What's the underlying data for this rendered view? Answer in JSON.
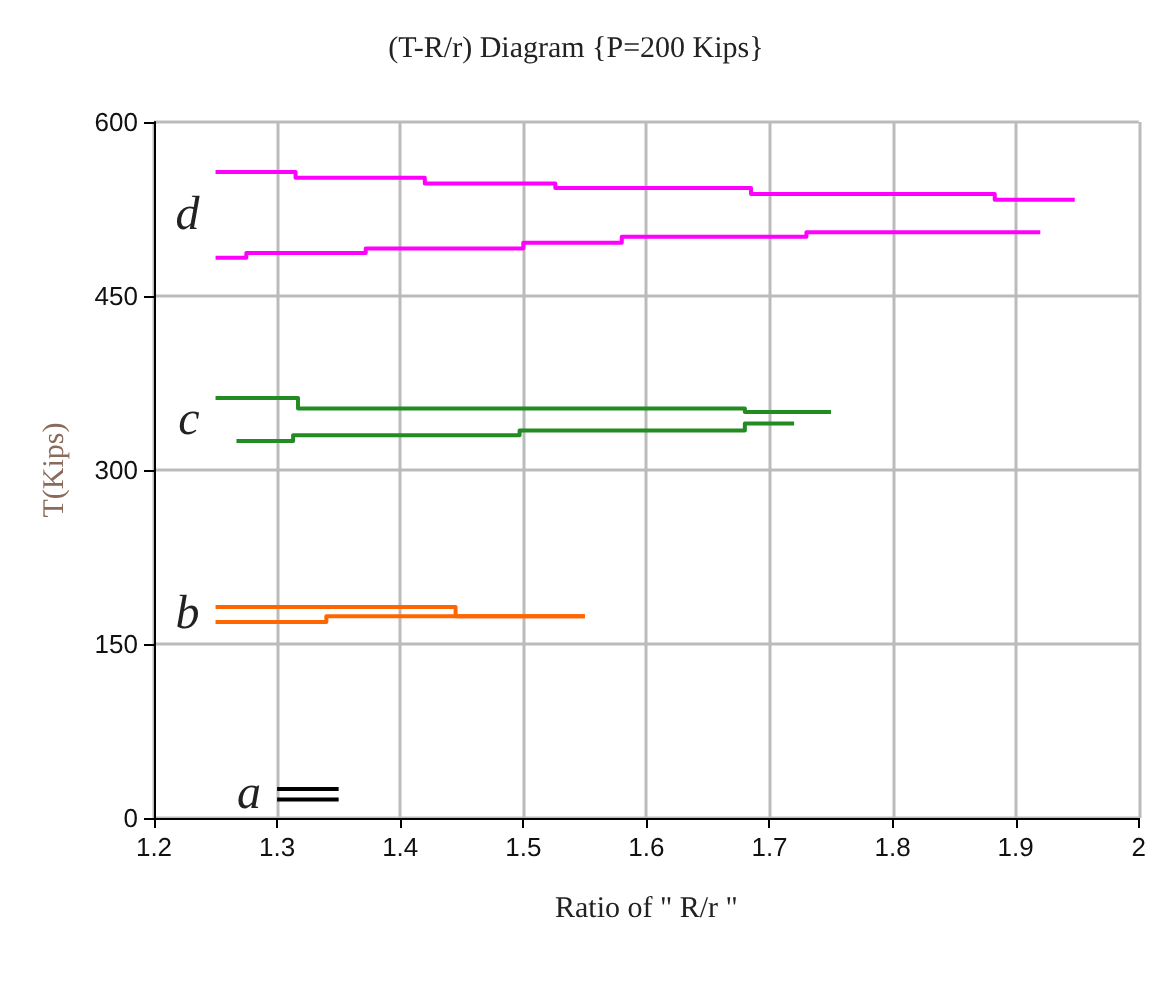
{
  "chart_data": {
    "type": "step",
    "title": "(T-R/r) Diagram {P=200 Kips}",
    "xlabel": "Ratio of \" R/r \"",
    "ylabel": "T(Kips)",
    "xlim": [
      1.2,
      2
    ],
    "xticks": [
      1.2,
      1.3,
      1.4,
      1.5,
      1.6,
      1.7,
      1.8,
      1.9,
      2
    ],
    "ylim": [
      0,
      600
    ],
    "yticks": [
      0,
      150,
      300,
      450,
      600
    ],
    "grid": true,
    "marker": "none",
    "line_style": "solid",
    "series": [
      {
        "color": "#ff00ff",
        "x": [
          1.25,
          1.315,
          1.42,
          1.526,
          1.685,
          1.883,
          1.948
        ],
        "values": [
          557,
          552,
          547,
          543,
          538,
          533,
          533
        ]
      },
      {
        "color": "#ff00ff",
        "x": [
          1.25,
          1.275,
          1.372,
          1.5,
          1.58,
          1.73,
          1.92
        ],
        "values": [
          483,
          487,
          491,
          496,
          501,
          505,
          505
        ]
      },
      {
        "color": "#228b22",
        "x": [
          1.25,
          1.317,
          1.68,
          1.75
        ],
        "values": [
          362,
          353,
          350,
          350
        ]
      },
      {
        "color": "#228b22",
        "x": [
          1.267,
          1.313,
          1.497,
          1.68,
          1.72
        ],
        "values": [
          325,
          330,
          334,
          340,
          340
        ]
      },
      {
        "color": "#ff6600",
        "x": [
          1.25,
          1.445,
          1.55
        ],
        "values": [
          182,
          174,
          174
        ]
      },
      {
        "color": "#ff6600",
        "x": [
          1.25,
          1.34,
          1.55
        ],
        "values": [
          169,
          174,
          174
        ]
      },
      {
        "color": "#000000",
        "x": [
          1.3,
          1.35
        ],
        "values": [
          25,
          25
        ]
      },
      {
        "color": "#000000",
        "x": [
          1.3,
          1.35
        ],
        "values": [
          16,
          16
        ]
      }
    ],
    "annotations": [
      "a",
      "b",
      "c",
      "d"
    ]
  }
}
